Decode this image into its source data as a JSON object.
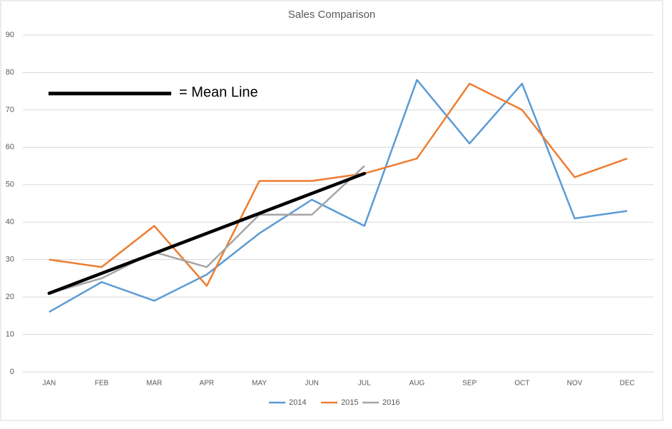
{
  "chart_data": {
    "type": "line",
    "title": "Sales Comparison",
    "categories": [
      "JAN",
      "FEB",
      "MAR",
      "APR",
      "MAY",
      "JUN",
      "JUL",
      "AUG",
      "SEP",
      "OCT",
      "NOV",
      "DEC"
    ],
    "series": [
      {
        "name": "2014",
        "color": "#5b9bd5",
        "values": [
          16,
          24,
          19,
          26,
          37,
          46,
          39,
          78,
          61,
          77,
          41,
          43
        ]
      },
      {
        "name": "2015",
        "color": "#ed7d31",
        "values": [
          30,
          28,
          39,
          23,
          51,
          51,
          53,
          57,
          77,
          70,
          52,
          57
        ]
      },
      {
        "name": "2016",
        "color": "#a5a5a5",
        "values": [
          21,
          25,
          32,
          28,
          42,
          42,
          55,
          null,
          null,
          null,
          null,
          null
        ]
      }
    ],
    "mean_line": {
      "label": "= Mean Line",
      "color": "#000000",
      "x": [
        "JAN",
        "JUL"
      ],
      "values": [
        21,
        53
      ]
    },
    "ylim": [
      0,
      90
    ],
    "yticks": [
      0,
      10,
      20,
      30,
      40,
      50,
      60,
      70,
      80,
      90
    ],
    "grid": true,
    "legend": "bottom"
  }
}
